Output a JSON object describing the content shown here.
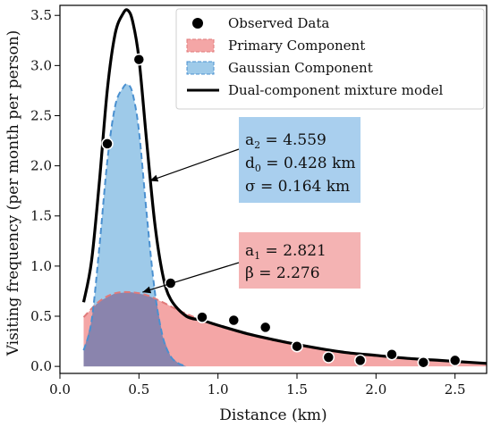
{
  "chart_data": {
    "type": "line",
    "xlabel": "Distance (km)",
    "ylabel": "Visiting frequency (per month per person)",
    "xlim": [
      0.0,
      2.7
    ],
    "ylim": [
      -0.07,
      3.6
    ],
    "x_ticks": [
      "0.0",
      "0.5",
      "1.0",
      "1.5",
      "2.0",
      "2.5"
    ],
    "y_ticks": [
      "0.0",
      "0.5",
      "1.0",
      "1.5",
      "2.0",
      "2.5",
      "3.0",
      "3.5"
    ],
    "x_tick_values": [
      0.0,
      0.5,
      1.0,
      1.5,
      2.0,
      2.5
    ],
    "y_tick_values": [
      0.0,
      0.5,
      1.0,
      1.5,
      2.0,
      2.5,
      3.0,
      3.5
    ],
    "grid": false,
    "legend_position": "top-right",
    "colors": {
      "observed": "#000000",
      "primary_fill": "#f4a6a6",
      "primary_line": "#e07a7a",
      "gaussian_fill": "#9ecae9",
      "gaussian_line": "#4a90d0",
      "overlap": "#8a84ad",
      "mixture": "#000000",
      "ann_blue": "#a9cfee",
      "ann_red": "#f4b3b3"
    },
    "series": [
      {
        "name": "Observed Data",
        "kind": "scatter",
        "x": [
          0.3,
          0.5,
          0.7,
          0.9,
          1.1,
          1.3,
          1.5,
          1.7,
          1.9,
          2.1,
          2.3,
          2.5
        ],
        "y": [
          2.22,
          3.06,
          0.83,
          0.49,
          0.46,
          0.39,
          0.2,
          0.09,
          0.06,
          0.12,
          0.04,
          0.06
        ]
      },
      {
        "name": "Primary Component",
        "kind": "area",
        "x": [
          0.15,
          0.25,
          0.35,
          0.45,
          0.55,
          0.65,
          0.75,
          0.9,
          1.1,
          1.3,
          1.5,
          1.7,
          1.9,
          2.1,
          2.3,
          2.5,
          2.7
        ],
        "y": [
          0.49,
          0.65,
          0.73,
          0.74,
          0.71,
          0.64,
          0.56,
          0.46,
          0.36,
          0.28,
          0.21,
          0.16,
          0.12,
          0.09,
          0.07,
          0.05,
          0.03
        ]
      },
      {
        "name": "Gaussian Component",
        "kind": "area",
        "x": [
          0.15,
          0.2,
          0.25,
          0.3,
          0.35,
          0.4,
          0.43,
          0.46,
          0.5,
          0.55,
          0.6,
          0.65,
          0.7,
          0.75,
          0.8
        ],
        "y": [
          0.16,
          0.45,
          1.2,
          2.05,
          2.6,
          2.78,
          2.81,
          2.72,
          2.35,
          1.5,
          0.75,
          0.3,
          0.1,
          0.03,
          0.0
        ]
      },
      {
        "name": "Dual-component mixture model",
        "kind": "line",
        "x": [
          0.15,
          0.2,
          0.25,
          0.3,
          0.35,
          0.4,
          0.43,
          0.46,
          0.5,
          0.55,
          0.6,
          0.65,
          0.7,
          0.8,
          0.9,
          1.0,
          1.2,
          1.4,
          1.6,
          1.8,
          2.0,
          2.2,
          2.4,
          2.6,
          2.7
        ],
        "y": [
          0.64,
          1.05,
          1.85,
          2.76,
          3.32,
          3.52,
          3.55,
          3.44,
          3.07,
          2.22,
          1.43,
          0.92,
          0.67,
          0.5,
          0.46,
          0.41,
          0.32,
          0.25,
          0.19,
          0.14,
          0.11,
          0.08,
          0.06,
          0.04,
          0.03
        ]
      }
    ],
    "annotations": [
      {
        "lines": [
          {
            "main": "a",
            "sub": "2",
            "rest": " = 4.559"
          },
          {
            "main": "d",
            "sub": "0",
            "rest": " = 0.428 km"
          },
          {
            "main": "σ = 0.164 km",
            "sub": "",
            "rest": ""
          }
        ],
        "arrow_to": [
          0.5,
          1.85
        ]
      },
      {
        "lines": [
          {
            "main": "a",
            "sub": "1",
            "rest": " = 2.821"
          },
          {
            "main": "β = 2.276",
            "sub": "",
            "rest": ""
          }
        ],
        "arrow_to": [
          0.5,
          0.74
        ]
      }
    ]
  }
}
